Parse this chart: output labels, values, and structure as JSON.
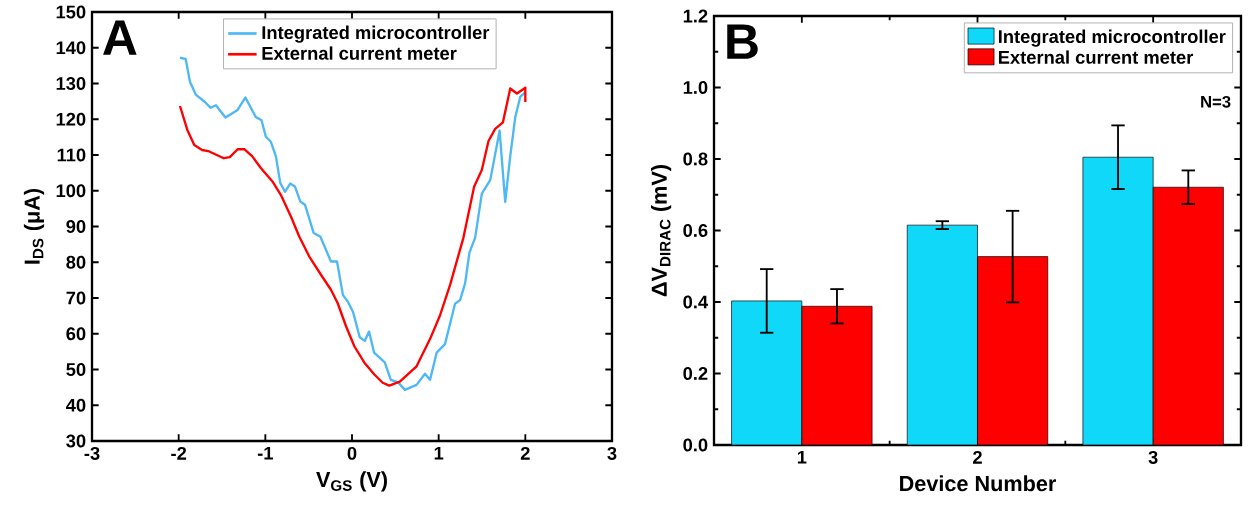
{
  "chart_data": [
    {
      "type": "line",
      "xlabel": "V$_{GS}$ (V)",
      "ylabel": "I$_{DS}$ (μA)",
      "annotations": [
        "A"
      ],
      "xlim": [
        -3,
        3
      ],
      "xticks": [
        -3,
        -2,
        -1,
        0,
        1,
        2,
        3
      ],
      "ylim": [
        30,
        150
      ],
      "yticks": [
        30,
        40,
        50,
        60,
        70,
        80,
        90,
        100,
        110,
        120,
        130,
        140,
        150
      ],
      "legend": "top",
      "marker": "none",
      "series": [
        {
          "name": "Integrated microcontroller",
          "color": "#4db8f5",
          "x": [
            -1.985,
            -1.92,
            -1.87,
            -1.8,
            -1.7,
            -1.63,
            -1.57,
            -1.46,
            -1.32,
            -1.23,
            -1.11,
            -1.044,
            -0.994,
            -0.936,
            -0.878,
            -0.828,
            -0.774,
            -0.713,
            -0.659,
            -0.597,
            -0.543,
            -0.443,
            -0.366,
            -0.243,
            -0.173,
            -0.104,
            -0.046,
            0.012,
            0.089,
            0.147,
            0.197,
            0.255,
            0.378,
            0.448,
            0.533,
            0.61,
            0.745,
            0.842,
            0.9,
            0.977,
            1.073,
            1.189,
            1.247,
            1.305,
            1.355,
            1.421,
            1.498,
            1.537,
            1.595,
            1.633,
            1.703,
            1.768,
            1.826,
            1.884,
            1.942,
            2.0
          ],
          "values": [
            137.2,
            136.9,
            130.5,
            126.8,
            124.9,
            123.2,
            123.9,
            120.5,
            122.6,
            126.1,
            120.6,
            119.7,
            115.1,
            113.7,
            109.6,
            102.2,
            99.7,
            102.0,
            101.2,
            97.0,
            96.1,
            88.2,
            87.2,
            80.2,
            80.2,
            70.8,
            68.9,
            66.1,
            59.0,
            58.0,
            60.6,
            54.7,
            52.0,
            47.1,
            46.4,
            44.3,
            45.7,
            48.8,
            47.1,
            54.7,
            57.1,
            68.4,
            69.4,
            74.1,
            82.7,
            86.9,
            99.2,
            100.7,
            103.0,
            107.8,
            116.8,
            96.9,
            109.7,
            120.6,
            126.3,
            127.5
          ]
        },
        {
          "name": "External current meter",
          "color": "#ff0000",
          "x": [
            -1.985,
            -1.9,
            -1.82,
            -1.73,
            -1.66,
            -1.56,
            -1.48,
            -1.41,
            -1.32,
            -1.24,
            -1.15,
            -1.05,
            -0.918,
            -0.82,
            -0.705,
            -0.609,
            -0.493,
            -0.358,
            -0.243,
            -0.166,
            -0.069,
            0.027,
            0.143,
            0.258,
            0.354,
            0.43,
            0.552,
            0.745,
            0.9,
            1.015,
            1.131,
            1.286,
            1.409,
            1.498,
            1.575,
            1.652,
            1.741,
            1.826,
            1.903,
            2.0,
            2.0
          ],
          "values": [
            123.7,
            117.0,
            112.8,
            111.4,
            111.1,
            110.0,
            109.1,
            109.4,
            111.6,
            111.6,
            109.6,
            106.3,
            102.6,
            98.8,
            92.8,
            87.2,
            81.6,
            76.5,
            72.3,
            68.6,
            62.1,
            56.5,
            51.9,
            48.6,
            46.3,
            45.5,
            46.6,
            50.9,
            58.5,
            65.1,
            73.6,
            86.9,
            101.1,
            105.8,
            113.9,
            117.3,
            119.1,
            128.6,
            127.2,
            128.8,
            124.8
          ]
        }
      ]
    },
    {
      "type": "bar",
      "xlabel": "Device Number",
      "ylabel": "ΔV$_{DIRAC}$ (mV)",
      "annotations": [
        "B",
        "N=3"
      ],
      "categories": [
        "1",
        "2",
        "3"
      ],
      "ylim": [
        0,
        1.2
      ],
      "yticks": [
        {
          "value": 0,
          "label": "0.0"
        },
        0.2,
        0.4,
        0.6,
        0.8,
        {
          "value": 1,
          "label": "1.0"
        },
        1.2
      ],
      "legend": "top right",
      "series": [
        {
          "name": "Integrated microcontroller",
          "color": "#0fd8f8",
          "values": [
            0.403,
            0.615,
            0.805
          ],
          "errors": [
            0.089,
            0.011,
            0.089
          ]
        },
        {
          "name": "External current meter",
          "color": "#ff0000",
          "values": [
            0.388,
            0.527,
            0.721
          ],
          "errors": [
            0.048,
            0.128,
            0.047
          ]
        }
      ]
    }
  ]
}
